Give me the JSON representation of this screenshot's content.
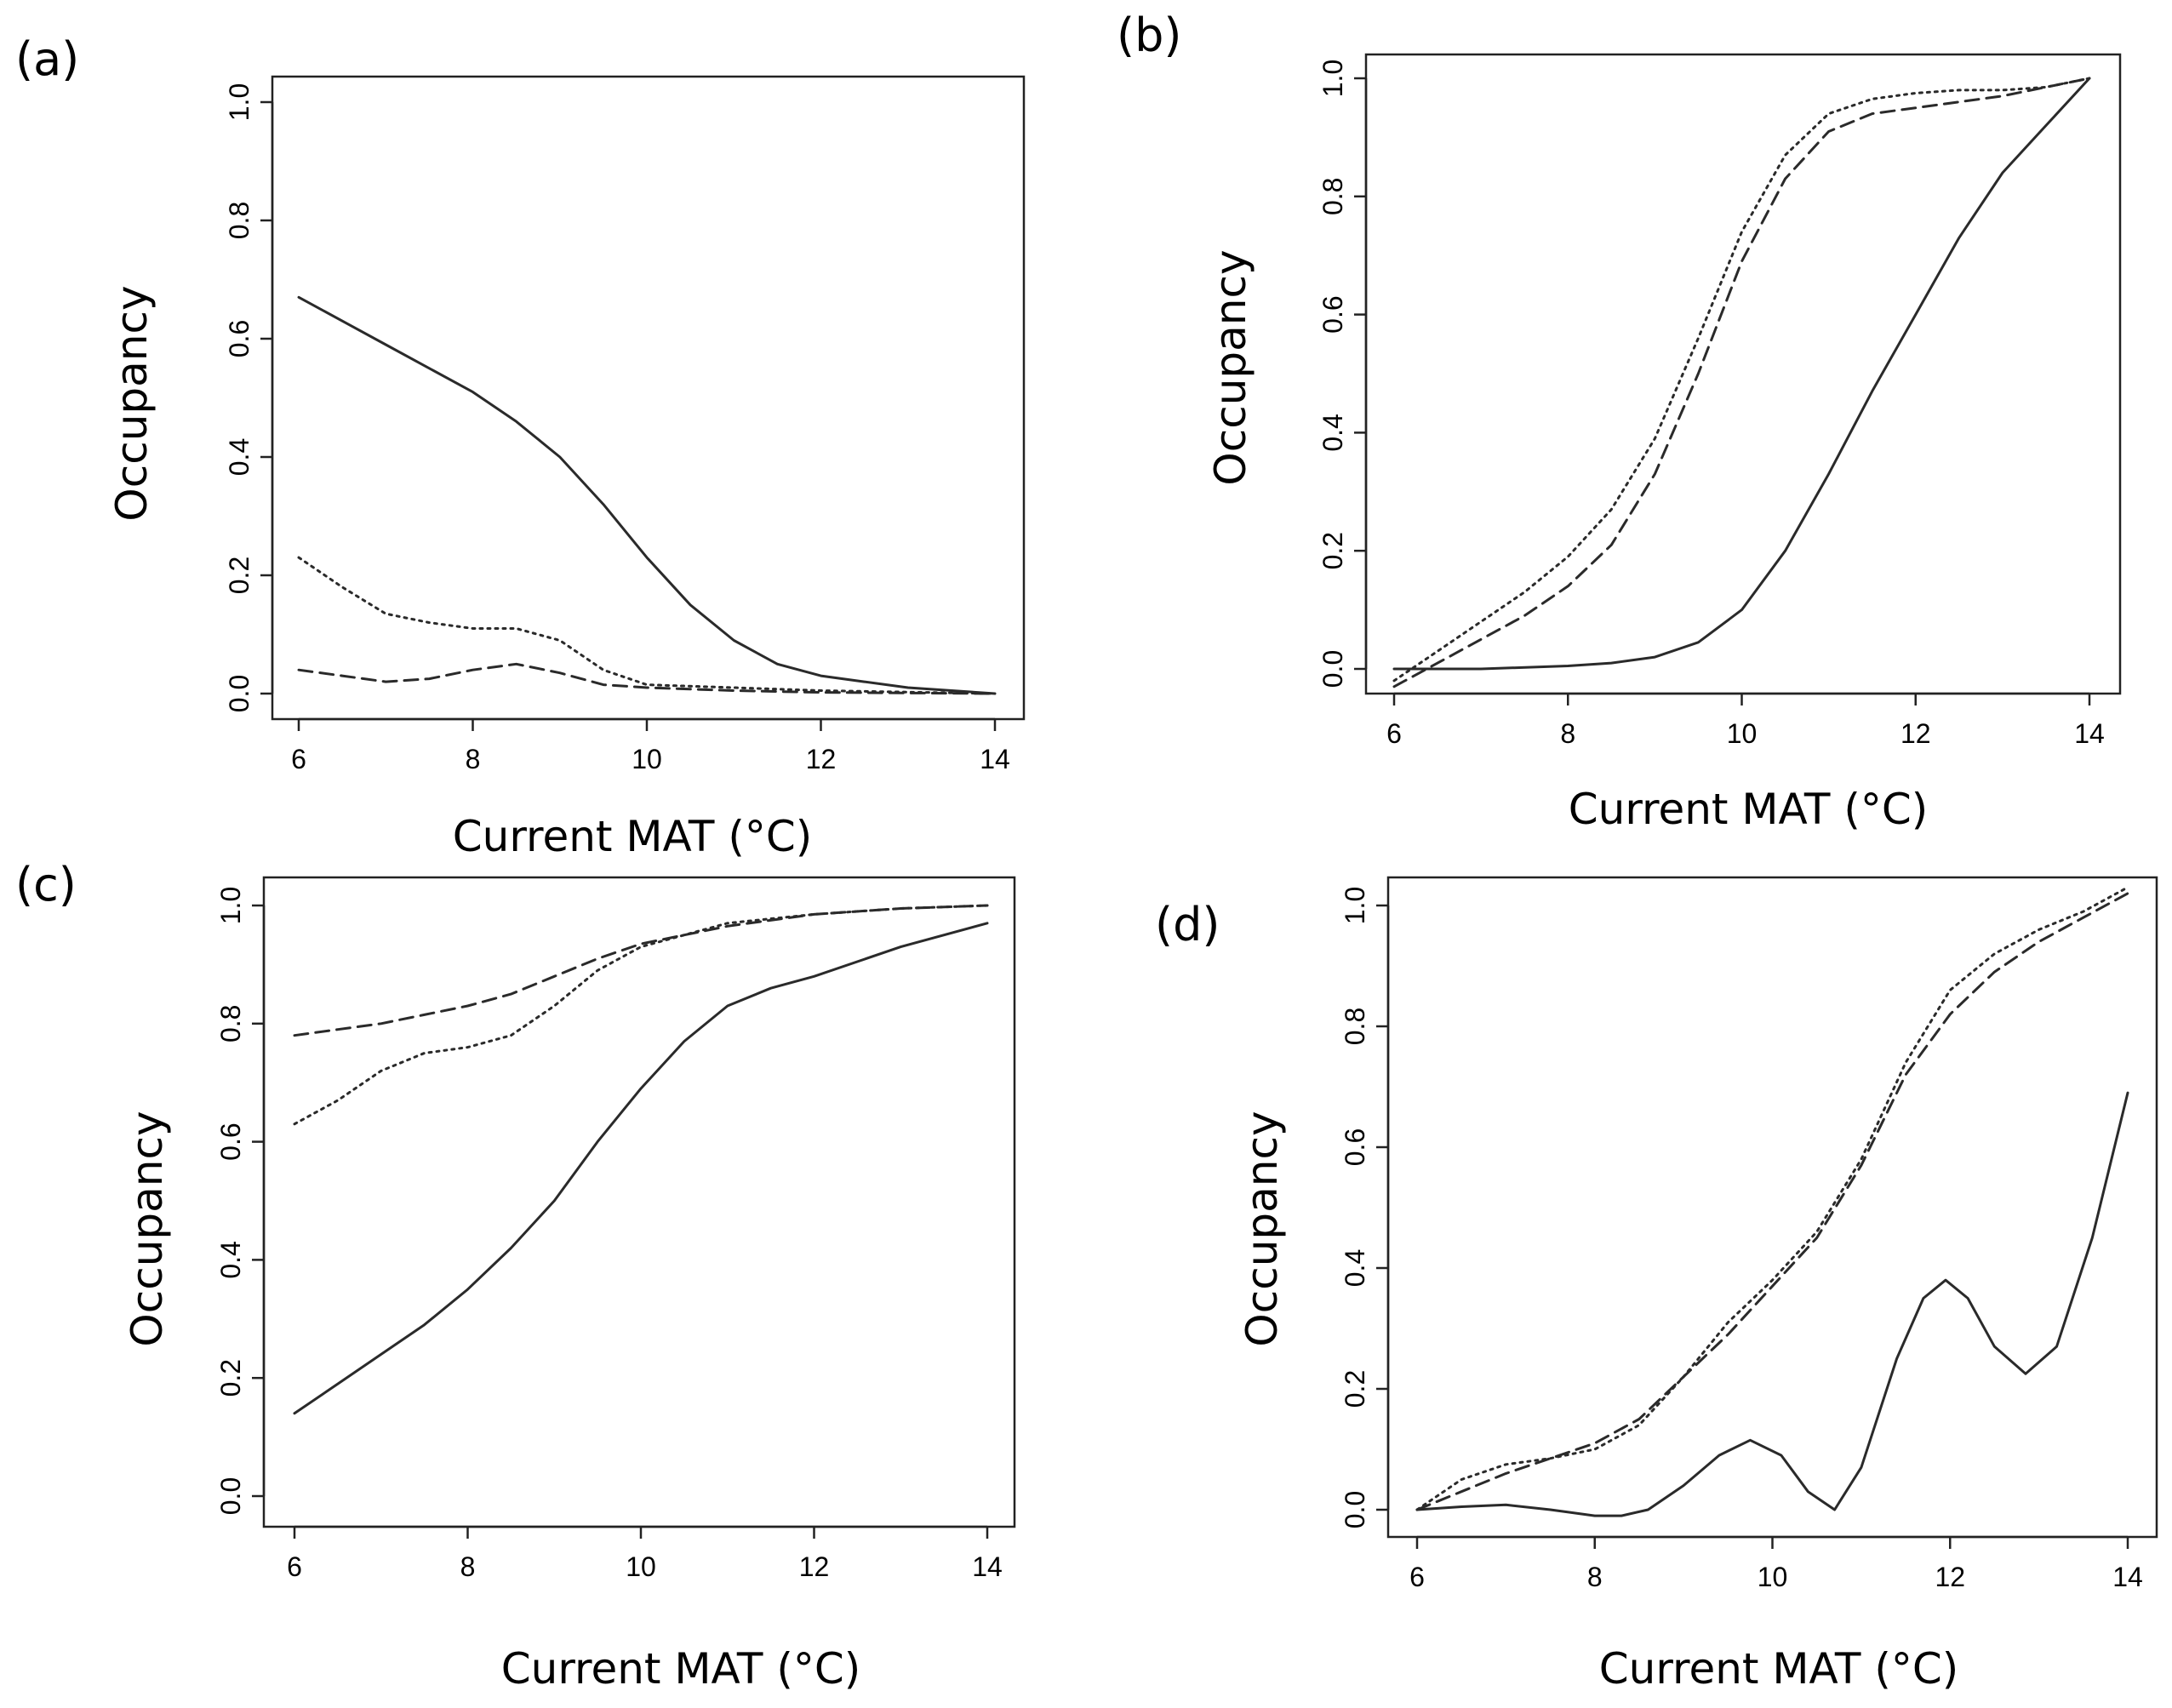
{
  "figure": {
    "background": "#ffffff",
    "line_color": "#2a2a2a"
  },
  "chart_data": [
    {
      "id": "a",
      "panel_label": "(a)",
      "type": "line",
      "xlabel": "Current MAT (°C)",
      "ylabel": "Occupancy",
      "xlim": [
        6,
        14
      ],
      "ylim": [
        0,
        1
      ],
      "xticks": [
        "6",
        "8",
        "10",
        "12",
        "14"
      ],
      "yticks": [
        "0.0",
        "0.2",
        "0.4",
        "0.6",
        "0.8",
        "1.0"
      ],
      "series": [
        {
          "name": "solid",
          "style": "solid",
          "x": [
            6,
            7,
            8,
            8.5,
            9,
            9.5,
            10,
            10.5,
            11,
            11.5,
            12,
            12.5,
            13,
            14
          ],
          "y": [
            0.67,
            0.59,
            0.51,
            0.46,
            0.4,
            0.32,
            0.23,
            0.15,
            0.09,
            0.05,
            0.03,
            0.02,
            0.01,
            0.0
          ]
        },
        {
          "name": "dotted",
          "style": "dotted",
          "x": [
            6,
            6.5,
            7,
            7.5,
            8,
            8.5,
            9,
            9.5,
            10,
            11,
            12,
            14
          ],
          "y": [
            0.23,
            0.18,
            0.135,
            0.12,
            0.11,
            0.11,
            0.09,
            0.04,
            0.015,
            0.01,
            0.005,
            0.0
          ]
        },
        {
          "name": "dashed",
          "style": "dashed",
          "x": [
            6,
            6.5,
            7,
            7.5,
            8,
            8.5,
            9,
            9.5,
            10,
            11,
            12,
            14
          ],
          "y": [
            0.04,
            0.03,
            0.02,
            0.025,
            0.04,
            0.05,
            0.035,
            0.015,
            0.01,
            0.005,
            0.002,
            0.0
          ]
        }
      ]
    },
    {
      "id": "b",
      "panel_label": "(b)",
      "type": "line",
      "xlabel": "Current MAT (°C)",
      "ylabel": "Occupancy",
      "xlim": [
        6,
        14
      ],
      "ylim": [
        0,
        1
      ],
      "xticks": [
        "6",
        "8",
        "10",
        "12",
        "14"
      ],
      "yticks": [
        "0.0",
        "0.2",
        "0.4",
        "0.6",
        "0.8",
        "1.0"
      ],
      "series": [
        {
          "name": "solid",
          "style": "solid",
          "x": [
            6,
            7,
            8,
            8.5,
            9,
            9.5,
            10,
            10.5,
            11,
            11.5,
            12,
            12.5,
            13,
            13.5,
            14
          ],
          "y": [
            0.0,
            0.0,
            0.005,
            0.01,
            0.02,
            0.045,
            0.1,
            0.2,
            0.33,
            0.47,
            0.6,
            0.73,
            0.84,
            0.92,
            1.0
          ]
        },
        {
          "name": "dotted",
          "style": "dotted",
          "x": [
            6,
            6.5,
            7,
            7.5,
            8,
            8.5,
            9,
            9.5,
            10,
            10.5,
            11,
            11.5,
            12,
            12.5,
            13,
            13.5,
            14
          ],
          "y": [
            -0.02,
            0.03,
            0.08,
            0.13,
            0.19,
            0.27,
            0.39,
            0.56,
            0.74,
            0.87,
            0.94,
            0.965,
            0.975,
            0.98,
            0.98,
            0.985,
            1.0
          ]
        },
        {
          "name": "dashed",
          "style": "dashed",
          "x": [
            6,
            6.5,
            7,
            7.5,
            8,
            8.5,
            9,
            9.5,
            10,
            10.5,
            11,
            11.5,
            12,
            12.5,
            13,
            13.5,
            14
          ],
          "y": [
            -0.03,
            0.01,
            0.05,
            0.09,
            0.14,
            0.21,
            0.33,
            0.5,
            0.69,
            0.83,
            0.91,
            0.94,
            0.95,
            0.96,
            0.97,
            0.985,
            1.0
          ]
        }
      ]
    },
    {
      "id": "c",
      "panel_label": "(c)",
      "type": "line",
      "xlabel": "Current MAT (°C)",
      "ylabel": "Occupancy",
      "xlim": [
        6,
        14
      ],
      "ylim": [
        0,
        1
      ],
      "xticks": [
        "6",
        "8",
        "10",
        "12",
        "14"
      ],
      "yticks": [
        "0.0",
        "0.2",
        "0.4",
        "0.6",
        "0.8",
        "1.0"
      ],
      "series": [
        {
          "name": "solid",
          "style": "solid",
          "x": [
            6,
            6.5,
            7,
            7.5,
            8,
            8.5,
            9,
            9.5,
            10,
            10.5,
            11,
            11.5,
            12,
            13,
            14
          ],
          "y": [
            0.14,
            0.19,
            0.24,
            0.29,
            0.35,
            0.42,
            0.5,
            0.6,
            0.69,
            0.77,
            0.83,
            0.86,
            0.88,
            0.93,
            0.97
          ]
        },
        {
          "name": "dotted",
          "style": "dotted",
          "x": [
            6,
            6.5,
            7,
            7.5,
            8,
            8.5,
            9,
            9.5,
            10,
            10.5,
            11,
            12,
            13,
            14
          ],
          "y": [
            0.63,
            0.67,
            0.72,
            0.75,
            0.76,
            0.78,
            0.83,
            0.89,
            0.93,
            0.95,
            0.97,
            0.985,
            0.995,
            1.0
          ]
        },
        {
          "name": "dashed",
          "style": "dashed",
          "x": [
            6,
            6.5,
            7,
            7.5,
            8,
            8.5,
            9,
            9.5,
            10,
            10.5,
            11,
            12,
            13,
            14
          ],
          "y": [
            0.78,
            0.79,
            0.8,
            0.815,
            0.83,
            0.85,
            0.88,
            0.91,
            0.935,
            0.95,
            0.965,
            0.985,
            0.995,
            1.0
          ]
        }
      ]
    },
    {
      "id": "d",
      "panel_label": "(d)",
      "type": "line",
      "xlabel": "Current MAT (°C)",
      "ylabel": "Occupancy",
      "xlim": [
        6,
        14
      ],
      "ylim": [
        0,
        1
      ],
      "xticks": [
        "6",
        "8",
        "10",
        "12",
        "14"
      ],
      "yticks": [
        "0.0",
        "0.2",
        "0.4",
        "0.6",
        "0.8",
        "1.0"
      ],
      "series": [
        {
          "name": "solid",
          "style": "solid",
          "x": [
            6,
            6.5,
            7,
            7.5,
            8,
            8.3,
            8.6,
            9,
            9.4,
            9.75,
            10.1,
            10.4,
            10.7,
            11.0,
            11.4,
            11.7,
            11.95,
            12.2,
            12.5,
            12.85,
            13.2,
            13.6,
            14
          ],
          "y": [
            0.0,
            0.005,
            0.008,
            0.0,
            -0.01,
            -0.01,
            0.0,
            0.04,
            0.09,
            0.115,
            0.09,
            0.03,
            0.0,
            0.07,
            0.25,
            0.35,
            0.38,
            0.35,
            0.27,
            0.225,
            0.27,
            0.45,
            0.69
          ]
        },
        {
          "name": "dotted",
          "style": "dotted",
          "x": [
            6,
            6.5,
            7,
            7.5,
            8,
            8.5,
            9,
            9.5,
            10,
            10.5,
            11,
            11.5,
            12,
            12.5,
            13,
            13.5,
            14
          ],
          "y": [
            0.0,
            0.05,
            0.075,
            0.085,
            0.1,
            0.14,
            0.22,
            0.31,
            0.38,
            0.46,
            0.58,
            0.74,
            0.86,
            0.92,
            0.96,
            0.99,
            1.03
          ]
        },
        {
          "name": "dashed",
          "style": "dashed",
          "x": [
            6,
            6.5,
            7,
            7.5,
            8,
            8.5,
            9,
            9.5,
            10,
            10.5,
            11,
            11.5,
            12,
            12.5,
            13,
            13.5,
            14
          ],
          "y": [
            0.0,
            0.03,
            0.06,
            0.085,
            0.11,
            0.15,
            0.22,
            0.29,
            0.37,
            0.45,
            0.57,
            0.72,
            0.82,
            0.89,
            0.94,
            0.98,
            1.02
          ]
        }
      ]
    }
  ]
}
